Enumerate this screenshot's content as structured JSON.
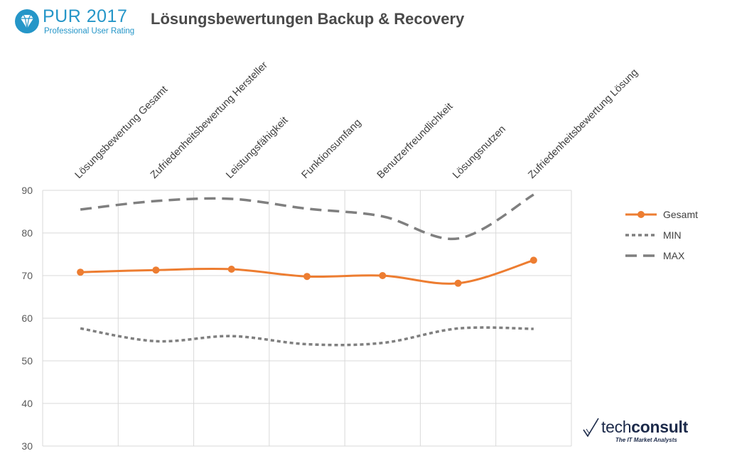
{
  "header": {
    "logo_title": "PUR 2017",
    "logo_subtitle": "Professional User Rating",
    "title": "Lösungsbewertungen Backup & Recovery"
  },
  "footer": {
    "brand_light": "tech",
    "brand_bold": "consult",
    "tagline": "The IT Market Analysts"
  },
  "chart_data": {
    "type": "line",
    "categories": [
      "Lösungsbewertung Gesamt",
      "Zufriedenheitsbewertung Hersteller",
      "Leistungsfähigkeit",
      "Funktionsumfang",
      "Benutzerfreundlichkeit",
      "Lösungsnutzen",
      "Zufriedenheitsbewertung Lösung"
    ],
    "series": [
      {
        "name": "Gesamt",
        "values": [
          70.8,
          71.3,
          71.5,
          69.8,
          70.0,
          68.2,
          73.6
        ],
        "color": "#ed7d31",
        "style": "solid-markers"
      },
      {
        "name": "MIN",
        "values": [
          57.6,
          54.6,
          55.8,
          53.9,
          54.2,
          57.6,
          57.5
        ],
        "color": "#7f7f7f",
        "style": "dotted"
      },
      {
        "name": "MAX",
        "values": [
          85.5,
          87.5,
          88.0,
          85.7,
          83.9,
          78.7,
          89.0
        ],
        "color": "#7f7f7f",
        "style": "dashed"
      }
    ],
    "ylim": [
      30,
      90
    ],
    "yticks": [
      30,
      40,
      50,
      60,
      70,
      80,
      90
    ],
    "grid": true,
    "legend_position": "right",
    "xlabel": "",
    "ylabel": ""
  }
}
